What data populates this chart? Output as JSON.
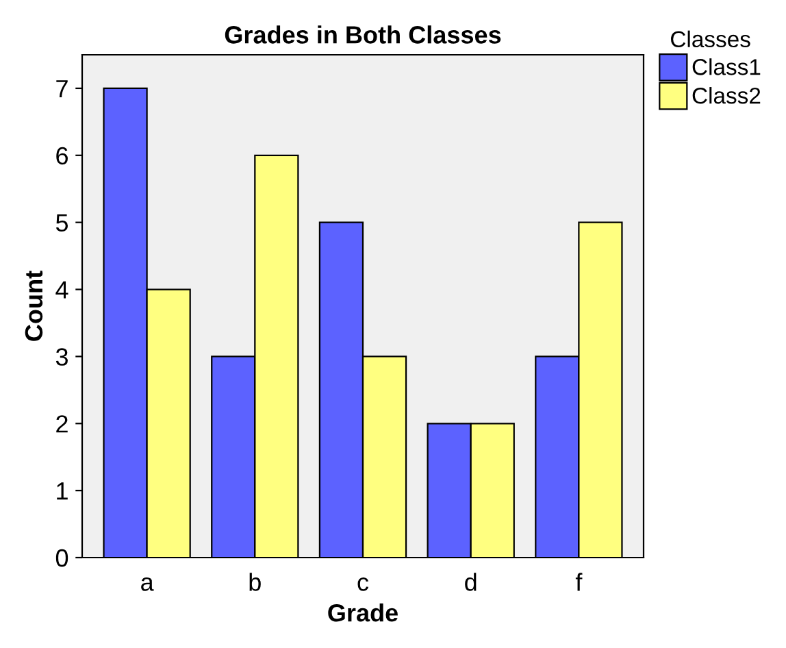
{
  "chart_data": {
    "type": "bar",
    "title": "Grades in Both Classes",
    "xlabel": "Grade",
    "ylabel": "Count",
    "legend_title": "Classes",
    "categories": [
      "a",
      "b",
      "c",
      "d",
      "f"
    ],
    "series": [
      {
        "name": "Class1",
        "color": "#5c62ff",
        "values": [
          7,
          3,
          5,
          2,
          3
        ]
      },
      {
        "name": "Class2",
        "color": "#ffff80",
        "values": [
          4,
          6,
          3,
          2,
          5
        ]
      }
    ],
    "ylim": [
      0,
      7.5
    ],
    "yticks": [
      0,
      1,
      2,
      3,
      4,
      5,
      6,
      7
    ],
    "grid": false,
    "legend": "top right"
  }
}
